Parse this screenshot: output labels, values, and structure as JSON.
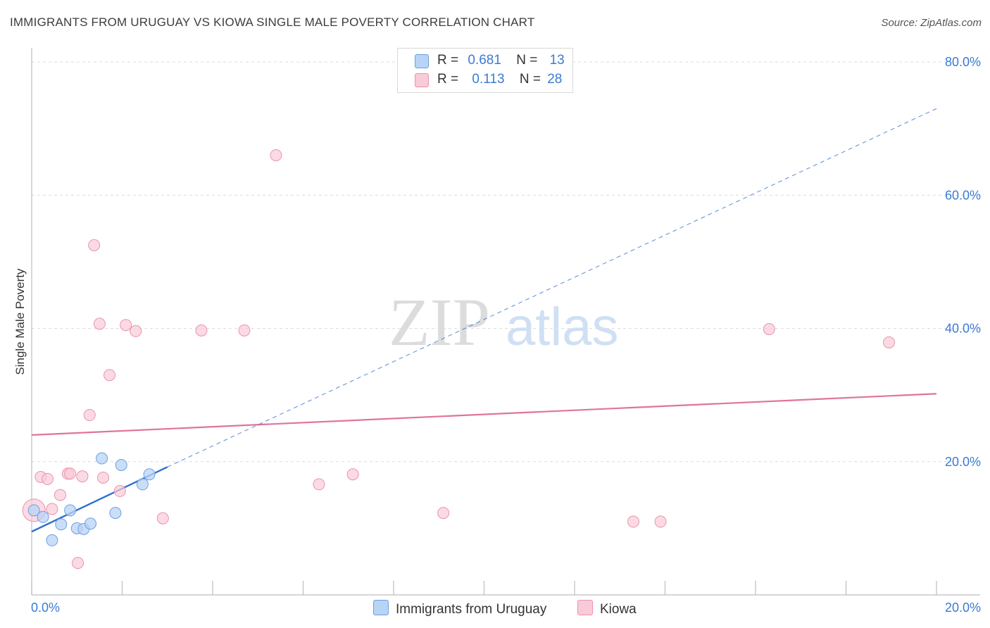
{
  "title": "IMMIGRANTS FROM URUGUAY VS KIOWA SINGLE MALE POVERTY CORRELATION CHART",
  "source": "Source: ZipAtlas.com",
  "watermark": {
    "zip": "ZIP",
    "atlas": "atlas"
  },
  "legend_top": {
    "rows": [
      {
        "r_label": "R =",
        "r_value": "0.681",
        "n_label": "N =",
        "n_value": "13"
      },
      {
        "r_label": "R =",
        "r_value": "0.113",
        "n_label": "N =",
        "n_value": "28"
      }
    ]
  },
  "colors": {
    "uruguay_fill": "#b8d3f5",
    "uruguay_stroke": "#6d9fe0",
    "uruguay_line": "#2f6fd0",
    "kiowa_fill": "#f9cad7",
    "kiowa_stroke": "#ea93ad",
    "kiowa_line": "#e0749a",
    "axis_label": "#3b7bd4",
    "grid": "#dcdcdc"
  },
  "chart_data": {
    "type": "scatter",
    "title": "IMMIGRANTS FROM URUGUAY VS KIOWA SINGLE MALE POVERTY CORRELATION CHART",
    "xlabel": "",
    "ylabel": "Single Male Poverty",
    "xlim": [
      0,
      20
    ],
    "ylim": [
      0,
      80
    ],
    "x_tick_labels": [
      "0.0%",
      "20.0%"
    ],
    "y_ticks": [
      20,
      40,
      60,
      80
    ],
    "y_tick_labels": [
      "20.0%",
      "40.0%",
      "60.0%",
      "80.0%"
    ],
    "series": [
      {
        "name": "Immigrants from Uruguay",
        "R": 0.681,
        "N": 13,
        "points": [
          [
            0.05,
            12.7
          ],
          [
            0.25,
            11.7
          ],
          [
            0.45,
            8.2
          ],
          [
            0.65,
            10.6
          ],
          [
            0.85,
            12.7
          ],
          [
            1.0,
            10.0
          ],
          [
            1.15,
            9.9
          ],
          [
            1.3,
            10.7
          ],
          [
            1.55,
            20.5
          ],
          [
            1.85,
            12.3
          ],
          [
            1.98,
            19.5
          ],
          [
            2.45,
            16.6
          ],
          [
            2.6,
            18.1
          ]
        ],
        "trend": {
          "x0": 0,
          "y0": 9.5,
          "x1": 3.0,
          "y1": 19.2
        },
        "trend_extended": {
          "x0": 3.0,
          "y0": 19.2,
          "x1": 20,
          "y1": 73.0
        }
      },
      {
        "name": "Kiowa",
        "R": 0.113,
        "N": 28,
        "points": [
          [
            0.2,
            17.7
          ],
          [
            0.35,
            17.4
          ],
          [
            0.45,
            12.9
          ],
          [
            0.63,
            15.0
          ],
          [
            0.8,
            18.2
          ],
          [
            0.85,
            18.2
          ],
          [
            1.02,
            4.8
          ],
          [
            1.12,
            17.8
          ],
          [
            1.28,
            27.0
          ],
          [
            1.38,
            52.5
          ],
          [
            1.5,
            40.7
          ],
          [
            1.58,
            17.6
          ],
          [
            1.72,
            33.0
          ],
          [
            1.95,
            15.6
          ],
          [
            2.08,
            40.5
          ],
          [
            2.3,
            39.6
          ],
          [
            2.9,
            11.5
          ],
          [
            3.75,
            39.7
          ],
          [
            4.7,
            39.7
          ],
          [
            5.4,
            66.0
          ],
          [
            6.35,
            16.6
          ],
          [
            7.1,
            18.1
          ],
          [
            9.1,
            12.3
          ],
          [
            13.3,
            11.0
          ],
          [
            13.9,
            11.0
          ],
          [
            16.3,
            39.9
          ],
          [
            18.95,
            37.9
          ],
          [
            0.05,
            12.7
          ]
        ],
        "trend": {
          "x0": 0,
          "y0": 24.0,
          "x1": 20,
          "y1": 30.2
        }
      }
    ]
  },
  "bottom_legend": [
    {
      "label": "Immigrants from Uruguay"
    },
    {
      "label": "Kiowa"
    }
  ]
}
